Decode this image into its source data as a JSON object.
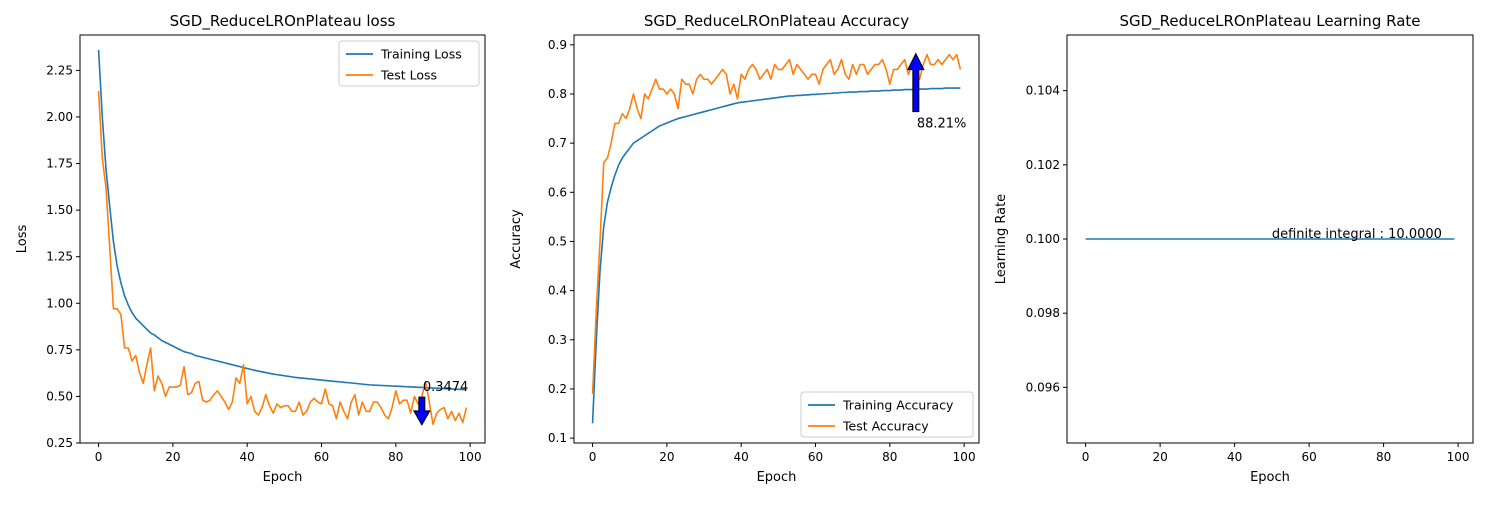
{
  "chart_data": [
    {
      "type": "line",
      "title": "SGD_ReduceLROnPlateau loss",
      "xlabel": "Epoch",
      "ylabel": "Loss",
      "xlim": [
        -5,
        104
      ],
      "ylim": [
        0.25,
        2.44
      ],
      "xticks": [
        0,
        20,
        40,
        60,
        80,
        100
      ],
      "yticks": [
        0.25,
        0.5,
        0.75,
        1.0,
        1.25,
        1.5,
        1.75,
        2.0,
        2.25
      ],
      "ytick_labels": [
        "0.25",
        "0.50",
        "0.75",
        "1.00",
        "1.25",
        "1.50",
        "1.75",
        "2.00",
        "2.25"
      ],
      "legend": "top-right",
      "series": [
        {
          "name": "Training Loss",
          "color": "#1f77b4",
          "values": [
            2.36,
            2.0,
            1.72,
            1.52,
            1.33,
            1.2,
            1.11,
            1.04,
            0.99,
            0.95,
            0.92,
            0.9,
            0.88,
            0.86,
            0.84,
            0.83,
            0.815,
            0.8,
            0.79,
            0.78,
            0.77,
            0.76,
            0.75,
            0.74,
            0.735,
            0.73,
            0.72,
            0.715,
            0.71,
            0.705,
            0.7,
            0.695,
            0.69,
            0.685,
            0.68,
            0.675,
            0.67,
            0.665,
            0.66,
            0.655,
            0.65,
            0.645,
            0.64,
            0.636,
            0.632,
            0.628,
            0.624,
            0.62,
            0.617,
            0.614,
            0.611,
            0.608,
            0.605,
            0.602,
            0.6,
            0.598,
            0.596,
            0.594,
            0.592,
            0.59,
            0.588,
            0.586,
            0.584,
            0.582,
            0.58,
            0.578,
            0.576,
            0.574,
            0.572,
            0.57,
            0.568,
            0.566,
            0.564,
            0.562,
            0.561,
            0.56,
            0.559,
            0.558,
            0.557,
            0.556,
            0.555,
            0.554,
            0.553,
            0.552,
            0.551,
            0.55,
            0.549,
            0.548,
            0.547,
            0.546,
            0.545,
            0.544,
            0.543,
            0.542,
            0.541,
            0.54,
            0.539,
            0.538,
            0.537,
            0.536
          ]
        },
        {
          "name": "Test Loss",
          "color": "#ff7f0e",
          "values": [
            2.14,
            1.78,
            1.62,
            1.3,
            0.97,
            0.97,
            0.94,
            0.76,
            0.76,
            0.69,
            0.72,
            0.63,
            0.57,
            0.67,
            0.76,
            0.53,
            0.61,
            0.57,
            0.5,
            0.55,
            0.55,
            0.55,
            0.56,
            0.66,
            0.51,
            0.52,
            0.57,
            0.58,
            0.48,
            0.47,
            0.48,
            0.51,
            0.53,
            0.5,
            0.47,
            0.43,
            0.47,
            0.6,
            0.57,
            0.67,
            0.46,
            0.5,
            0.42,
            0.4,
            0.44,
            0.51,
            0.45,
            0.41,
            0.46,
            0.44,
            0.45,
            0.45,
            0.42,
            0.42,
            0.47,
            0.4,
            0.42,
            0.47,
            0.49,
            0.47,
            0.46,
            0.54,
            0.46,
            0.45,
            0.38,
            0.47,
            0.42,
            0.38,
            0.47,
            0.51,
            0.4,
            0.47,
            0.42,
            0.42,
            0.47,
            0.47,
            0.44,
            0.4,
            0.38,
            0.44,
            0.53,
            0.46,
            0.48,
            0.48,
            0.41,
            0.5,
            0.46,
            0.5,
            0.58,
            0.47,
            0.35,
            0.41,
            0.43,
            0.44,
            0.38,
            0.42,
            0.37,
            0.41,
            0.36,
            0.44
          ]
        }
      ],
      "annotation": {
        "text": "0.3474",
        "x": 87,
        "y": 0.3474,
        "text_y": 0.55,
        "arrow": "down"
      }
    },
    {
      "type": "line",
      "title": "SGD_ReduceLROnPlateau Accuracy",
      "xlabel": "Epoch",
      "ylabel": "Accuracy",
      "xlim": [
        -5,
        104
      ],
      "ylim": [
        0.09,
        0.92
      ],
      "xticks": [
        0,
        20,
        40,
        60,
        80,
        100
      ],
      "yticks": [
        0.1,
        0.2,
        0.3,
        0.4,
        0.5,
        0.6,
        0.7,
        0.8,
        0.9
      ],
      "ytick_labels": [
        "0.1",
        "0.2",
        "0.3",
        "0.4",
        "0.5",
        "0.6",
        "0.7",
        "0.8",
        "0.9"
      ],
      "legend": "bottom-right",
      "series": [
        {
          "name": "Training Accuracy",
          "color": "#1f77b4",
          "values": [
            0.13,
            0.3,
            0.44,
            0.53,
            0.58,
            0.61,
            0.635,
            0.655,
            0.67,
            0.68,
            0.69,
            0.7,
            0.705,
            0.71,
            0.715,
            0.72,
            0.725,
            0.73,
            0.735,
            0.738,
            0.741,
            0.744,
            0.747,
            0.75,
            0.752,
            0.754,
            0.756,
            0.758,
            0.76,
            0.762,
            0.764,
            0.766,
            0.768,
            0.77,
            0.772,
            0.774,
            0.776,
            0.778,
            0.78,
            0.782,
            0.783,
            0.784,
            0.785,
            0.786,
            0.787,
            0.788,
            0.789,
            0.79,
            0.791,
            0.792,
            0.793,
            0.794,
            0.795,
            0.796,
            0.796,
            0.797,
            0.797,
            0.798,
            0.798,
            0.799,
            0.799,
            0.8,
            0.8,
            0.801,
            0.801,
            0.802,
            0.802,
            0.803,
            0.803,
            0.804,
            0.804,
            0.804,
            0.805,
            0.805,
            0.805,
            0.806,
            0.806,
            0.806,
            0.807,
            0.807,
            0.807,
            0.808,
            0.808,
            0.808,
            0.809,
            0.809,
            0.809,
            0.81,
            0.81,
            0.81,
            0.81,
            0.811,
            0.811,
            0.811,
            0.811,
            0.812,
            0.812,
            0.812,
            0.812,
            0.812
          ]
        },
        {
          "name": "Test Accuracy",
          "color": "#ff7f0e",
          "values": [
            0.19,
            0.36,
            0.5,
            0.66,
            0.67,
            0.7,
            0.74,
            0.74,
            0.76,
            0.75,
            0.77,
            0.8,
            0.77,
            0.75,
            0.8,
            0.79,
            0.81,
            0.83,
            0.81,
            0.81,
            0.8,
            0.81,
            0.8,
            0.77,
            0.83,
            0.82,
            0.82,
            0.8,
            0.83,
            0.84,
            0.83,
            0.83,
            0.82,
            0.83,
            0.84,
            0.85,
            0.84,
            0.8,
            0.82,
            0.79,
            0.84,
            0.83,
            0.85,
            0.86,
            0.85,
            0.83,
            0.84,
            0.85,
            0.83,
            0.86,
            0.85,
            0.85,
            0.86,
            0.87,
            0.84,
            0.86,
            0.85,
            0.84,
            0.83,
            0.84,
            0.84,
            0.82,
            0.85,
            0.86,
            0.87,
            0.84,
            0.85,
            0.87,
            0.84,
            0.83,
            0.86,
            0.84,
            0.86,
            0.86,
            0.84,
            0.85,
            0.86,
            0.86,
            0.87,
            0.85,
            0.82,
            0.85,
            0.85,
            0.86,
            0.87,
            0.84,
            0.86,
            0.85,
            0.83,
            0.86,
            0.88,
            0.86,
            0.86,
            0.87,
            0.86,
            0.87,
            0.88,
            0.87,
            0.88,
            0.85
          ]
        }
      ],
      "annotation": {
        "text": "88.21%",
        "x": 87,
        "y": 0.8821,
        "text_y": 0.76,
        "arrow": "up"
      }
    },
    {
      "type": "line",
      "title": "SGD_ReduceLROnPlateau Learning Rate",
      "xlabel": "Epoch",
      "ylabel": "Learning Rate",
      "xlim": [
        -5,
        104
      ],
      "ylim": [
        0.0945,
        0.1055
      ],
      "xticks": [
        0,
        20,
        40,
        60,
        80,
        100
      ],
      "yticks": [
        0.096,
        0.098,
        0.1,
        0.102,
        0.104
      ],
      "ytick_labels": [
        "0.096",
        "0.098",
        "0.100",
        "0.102",
        "0.104"
      ],
      "series": [
        {
          "name": "",
          "color": "#1f77b4",
          "values": [
            0.1,
            0.1,
            0.1,
            0.1,
            0.1,
            0.1,
            0.1,
            0.1,
            0.1,
            0.1,
            0.1,
            0.1,
            0.1,
            0.1,
            0.1,
            0.1,
            0.1,
            0.1,
            0.1,
            0.1,
            0.1,
            0.1,
            0.1,
            0.1,
            0.1,
            0.1,
            0.1,
            0.1,
            0.1,
            0.1,
            0.1,
            0.1,
            0.1,
            0.1,
            0.1,
            0.1,
            0.1,
            0.1,
            0.1,
            0.1,
            0.1,
            0.1,
            0.1,
            0.1,
            0.1,
            0.1,
            0.1,
            0.1,
            0.1,
            0.1,
            0.1,
            0.1,
            0.1,
            0.1,
            0.1,
            0.1,
            0.1,
            0.1,
            0.1,
            0.1,
            0.1,
            0.1,
            0.1,
            0.1,
            0.1,
            0.1,
            0.1,
            0.1,
            0.1,
            0.1,
            0.1,
            0.1,
            0.1,
            0.1,
            0.1,
            0.1,
            0.1,
            0.1,
            0.1,
            0.1,
            0.1,
            0.1,
            0.1,
            0.1,
            0.1,
            0.1,
            0.1,
            0.1,
            0.1,
            0.1,
            0.1,
            0.1,
            0.1,
            0.1,
            0.1,
            0.1,
            0.1,
            0.1,
            0.1,
            0.1
          ]
        }
      ],
      "annotation": {
        "text": "definite integral : 10.0000",
        "x": 50,
        "y": 0.1,
        "text_y": 0.1
      }
    }
  ]
}
